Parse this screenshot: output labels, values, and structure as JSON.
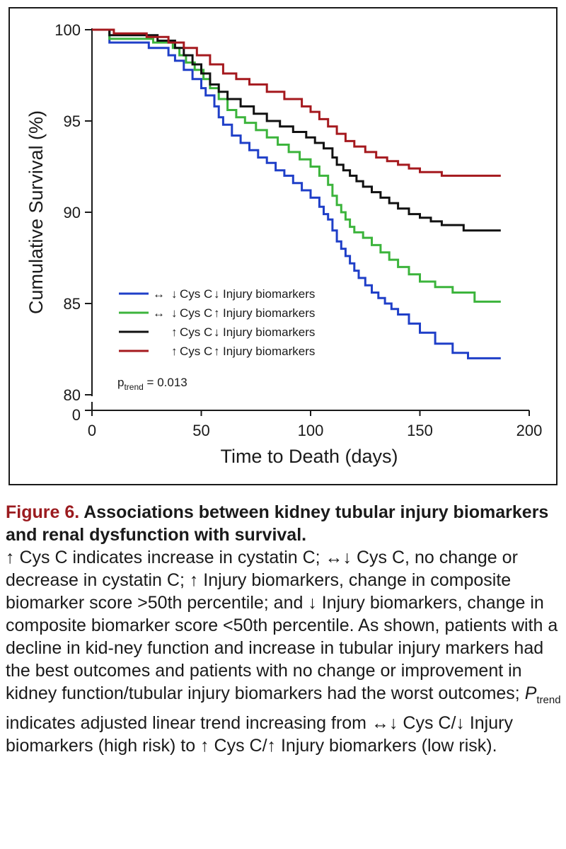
{
  "chart_data": {
    "type": "line",
    "step": true,
    "xlabel": "Time to Death (days)",
    "ylabel": "Cumulative Survival (%)",
    "xlim": [
      0,
      200
    ],
    "xticks": [
      "0",
      "50",
      "100",
      "150",
      "200"
    ],
    "yticks": [
      "80",
      "85",
      "90",
      "95",
      "100"
    ],
    "y_axis_zero_label": "0",
    "y_axis_break": true,
    "ylim": [
      80,
      100
    ],
    "grid": false,
    "legend_placement": "bottom-left inside",
    "series": [
      {
        "name": "↔↓Cys C ↓Injury biomarkers",
        "color": "#1f3fc8",
        "legend_parts": [
          "↔",
          "↓",
          "Cys C",
          "↓",
          "Injury biomarkers"
        ],
        "x": [
          0,
          8,
          26,
          35,
          38,
          42,
          46,
          50,
          52,
          56,
          58,
          60,
          64,
          68,
          72,
          76,
          80,
          84,
          88,
          92,
          96,
          100,
          104,
          106,
          108,
          110,
          112,
          114,
          116,
          118,
          120,
          122,
          125,
          128,
          131,
          134,
          137,
          140,
          145,
          150,
          157,
          165,
          172,
          187
        ],
        "y": [
          100,
          99.3,
          99.0,
          98.6,
          98.3,
          97.8,
          97.3,
          96.8,
          96.4,
          95.8,
          95.2,
          94.8,
          94.2,
          93.8,
          93.4,
          93.0,
          92.7,
          92.3,
          92.0,
          91.6,
          91.2,
          90.8,
          90.3,
          89.9,
          89.6,
          89.0,
          88.4,
          88.0,
          87.6,
          87.2,
          86.8,
          86.4,
          86.0,
          85.6,
          85.3,
          85.0,
          84.7,
          84.4,
          83.9,
          83.4,
          82.8,
          82.3,
          82.0,
          82.0
        ]
      },
      {
        "name": "↔↓Cys C ↑Injury biomarkers",
        "color": "#3cb43c",
        "legend_parts": [
          "↔",
          "↓",
          "Cys C",
          "↑",
          "Injury biomarkers"
        ],
        "x": [
          0,
          8,
          28,
          37,
          40,
          43,
          47,
          51,
          54,
          58,
          62,
          66,
          70,
          75,
          80,
          85,
          90,
          95,
          100,
          104,
          108,
          110,
          112,
          114,
          116,
          118,
          120,
          124,
          128,
          132,
          136,
          140,
          145,
          150,
          157,
          165,
          175,
          187
        ],
        "y": [
          100,
          99.5,
          99.3,
          99.0,
          98.6,
          98.2,
          97.8,
          97.3,
          96.8,
          96.2,
          95.6,
          95.2,
          94.9,
          94.5,
          94.1,
          93.7,
          93.3,
          92.9,
          92.5,
          92.0,
          91.5,
          90.9,
          90.4,
          90.0,
          89.6,
          89.2,
          88.9,
          88.6,
          88.2,
          87.8,
          87.4,
          87.0,
          86.6,
          86.2,
          85.9,
          85.6,
          85.1,
          85.1
        ]
      },
      {
        "name": "↑Cys C ↓Injury biomarkers",
        "color": "#111111",
        "legend_parts": [
          "",
          "↑",
          "Cys C",
          "↓",
          "Injury biomarkers"
        ],
        "x": [
          0,
          8,
          30,
          38,
          42,
          46,
          50,
          54,
          58,
          62,
          68,
          74,
          80,
          86,
          92,
          98,
          102,
          106,
          110,
          112,
          115,
          118,
          121,
          124,
          128,
          132,
          136,
          140,
          145,
          150,
          155,
          160,
          170,
          187
        ],
        "y": [
          100,
          99.7,
          99.4,
          99.0,
          98.6,
          98.1,
          97.6,
          97.0,
          96.6,
          96.2,
          95.8,
          95.4,
          95.0,
          94.7,
          94.4,
          94.1,
          93.8,
          93.5,
          93.0,
          92.6,
          92.3,
          92.0,
          91.7,
          91.4,
          91.1,
          90.8,
          90.5,
          90.2,
          89.9,
          89.7,
          89.5,
          89.3,
          89.0,
          89.0
        ]
      },
      {
        "name": "↑Cys C ↑Injury biomarkers",
        "color": "#a5191e",
        "legend_parts": [
          "",
          "↑",
          "Cys C",
          "↑",
          "Injury biomarkers"
        ],
        "x": [
          0,
          10,
          25,
          35,
          42,
          48,
          54,
          60,
          66,
          72,
          80,
          88,
          96,
          100,
          104,
          108,
          112,
          116,
          120,
          125,
          130,
          135,
          140,
          145,
          150,
          160,
          170,
          187
        ],
        "y": [
          100,
          99.8,
          99.6,
          99.3,
          99.0,
          98.6,
          98.1,
          97.6,
          97.3,
          97.0,
          96.6,
          96.2,
          95.8,
          95.5,
          95.1,
          94.7,
          94.3,
          93.9,
          93.6,
          93.3,
          93.0,
          92.8,
          92.6,
          92.4,
          92.2,
          92.0,
          92.0,
          92.0
        ]
      }
    ],
    "annotations": {
      "ptrend_prefix": "p",
      "ptrend_sub": "trend",
      "ptrend_value": " = 0.013"
    }
  },
  "caption": {
    "label": "Figure 6.",
    "title": " Associations between kidney tubular injury biomarkers and renal dysfunction with survival.",
    "body_before": "↑ Cys C indicates increase in cystatin C; ↔↓ Cys C, no change or decrease in cystatin C; ↑ Injury biomarkers, change in composite biomarker score >50th percentile; and ↓ Injury biomarkers, change in composite biomarker score <50th percentile. As shown, patients with a decline in kid-ney function and increase in tubular injury markers had the best outcomes and patients with no change or improvement in kidney function/tubular injury biomarkers had the worst outcomes; ",
    "p_italic": "P",
    "p_sub": "trend",
    "body_after": " indicates adjusted linear trend increasing from ↔↓ Cys C/↓ Injury biomarkers (high risk) to ↑ Cys C/↑ Injury biomarkers (low risk)."
  }
}
